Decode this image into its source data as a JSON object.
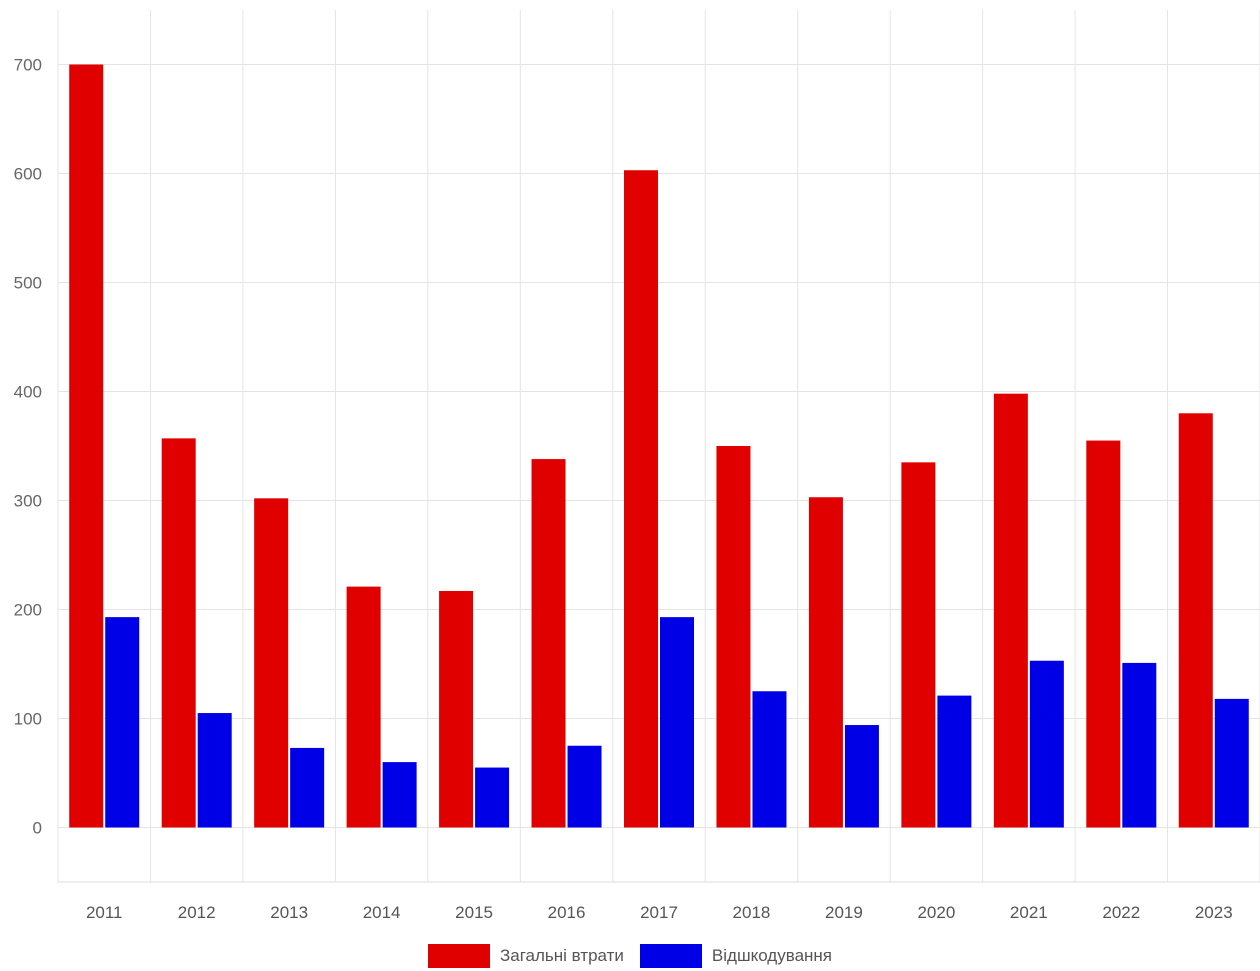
{
  "chart_data": {
    "type": "bar",
    "title": "",
    "xlabel": "",
    "ylabel": "",
    "categories": [
      "2011",
      "2012",
      "2013",
      "2014",
      "2015",
      "2016",
      "2017",
      "2018",
      "2019",
      "2020",
      "2021",
      "2022",
      "2023"
    ],
    "series": [
      {
        "name": "Загальні втрати",
        "color": "#e00000",
        "values": [
          700,
          357,
          302,
          221,
          217,
          338,
          603,
          350,
          303,
          335,
          398,
          355,
          380
        ]
      },
      {
        "name": "Відшкодування",
        "color": "#0000e6",
        "values": [
          193,
          105,
          73,
          60,
          55,
          75,
          193,
          125,
          94,
          121,
          153,
          151,
          118
        ]
      }
    ],
    "y_ticks": [
      "0",
      "100",
      "200",
      "300",
      "400",
      "500",
      "600",
      "700"
    ],
    "ylim": [
      -50,
      750
    ],
    "grid": true,
    "legend_position": "bottom-center"
  }
}
